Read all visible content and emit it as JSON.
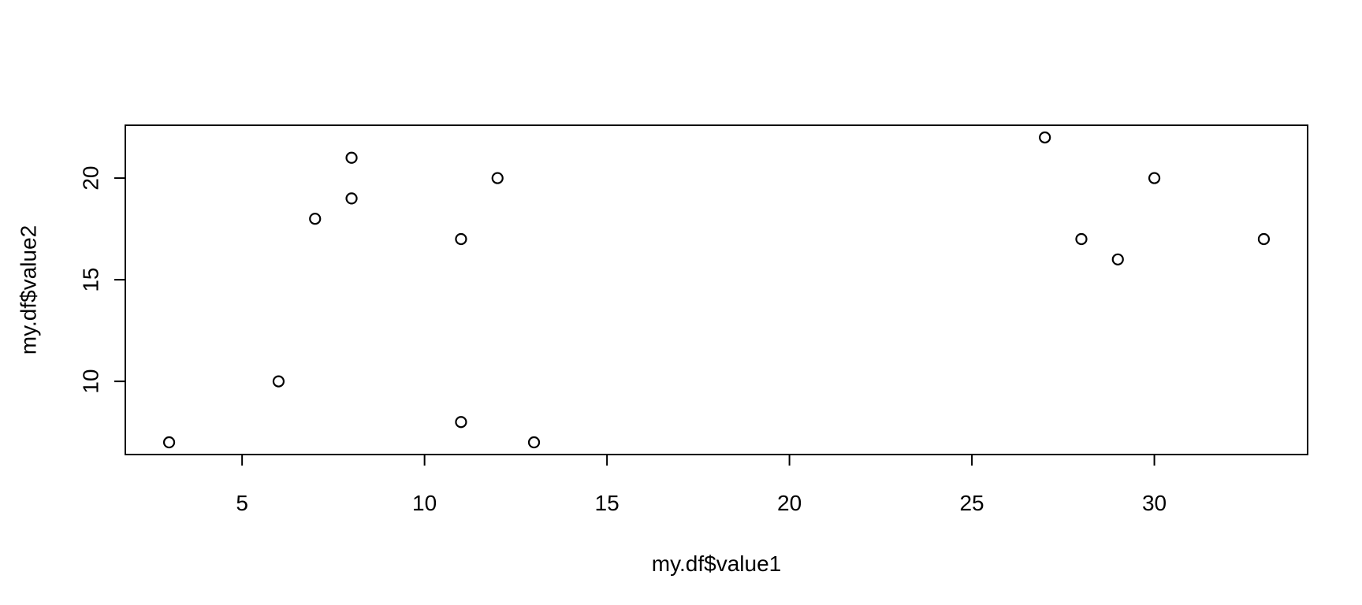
{
  "chart_data": {
    "type": "scatter",
    "title": "",
    "xlabel": "my.df$value1",
    "ylabel": "my.df$value2",
    "xlim": [
      1.8,
      34.2
    ],
    "ylim": [
      6.4,
      22.6
    ],
    "x_ticks": [
      5,
      10,
      15,
      20,
      25,
      30
    ],
    "y_ticks": [
      10,
      15,
      20
    ],
    "grid": false,
    "point_style": "open-circle",
    "x": [
      3,
      6,
      7,
      8,
      8,
      11,
      11,
      12,
      13,
      27,
      28,
      29,
      30,
      33
    ],
    "y": [
      7,
      10,
      18,
      21,
      19,
      17,
      8,
      20,
      7,
      22,
      17,
      16,
      20,
      17
    ]
  }
}
